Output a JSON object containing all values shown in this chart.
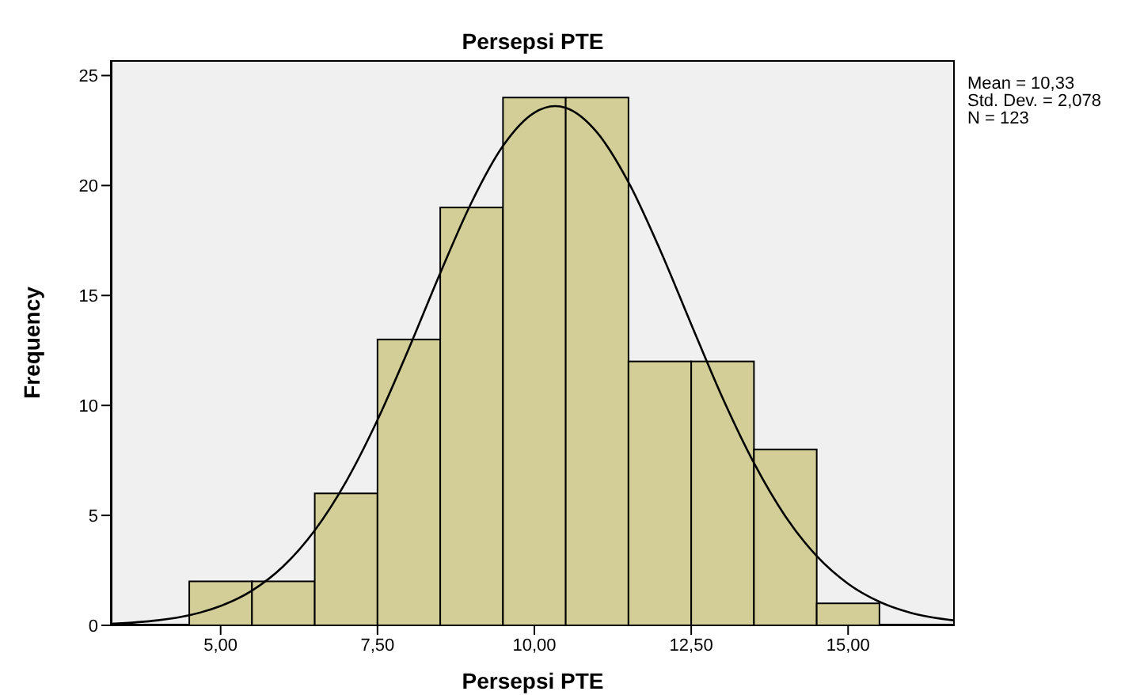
{
  "chart_data": {
    "type": "histogram",
    "title": "Persepsi PTE",
    "xlabel": "Persepsi PTE",
    "ylabel": "Frequency",
    "bins": [
      4.5,
      5.5,
      6.5,
      7.5,
      8.5,
      9.5,
      10.5,
      11.5,
      12.5,
      13.5,
      14.5,
      15.5
    ],
    "values": [
      2,
      2,
      6,
      13,
      19,
      24,
      24,
      12,
      12,
      8,
      1
    ],
    "color": "#d3ce97",
    "series": [
      {
        "type": "line",
        "color": "#000000",
        "x": [
          3.25,
          4,
          4.5,
          5,
          5.5,
          6,
          6.5,
          7,
          7.5,
          8,
          8.5,
          9,
          9.5,
          10,
          10.33,
          10.5,
          11,
          11.5,
          12,
          12.5,
          13,
          13.5,
          14,
          14.5,
          15,
          15.5,
          16,
          16.7
        ],
        "values": [
          0.07,
          0.23,
          0.46,
          0.88,
          1.58,
          2.69,
          4.32,
          6.54,
          9.34,
          12.59,
          16.02,
          19.24,
          21.8,
          23.31,
          23.61,
          23.53,
          22.41,
          20.15,
          17.1,
          13.69,
          10.34,
          7.38,
          4.96,
          3.15,
          1.89,
          1.07,
          0.57,
          0.22
        ]
      }
    ],
    "xlim": [
      3.25,
      16.7
    ],
    "ylim": [
      0,
      25.7
    ],
    "xticks": [
      {
        "value": 5,
        "label": "5,00"
      },
      {
        "value": 7.5,
        "label": "7,50"
      },
      {
        "value": 10,
        "label": "10,00"
      },
      {
        "value": 12.5,
        "label": "12,50"
      },
      {
        "value": 15,
        "label": "15,00"
      }
    ],
    "yticks": [
      0,
      5,
      10,
      15,
      20,
      25
    ],
    "annotations": [
      "Mean = 10,33",
      "Std. Dev. = 2,078",
      "N = 123"
    ]
  }
}
